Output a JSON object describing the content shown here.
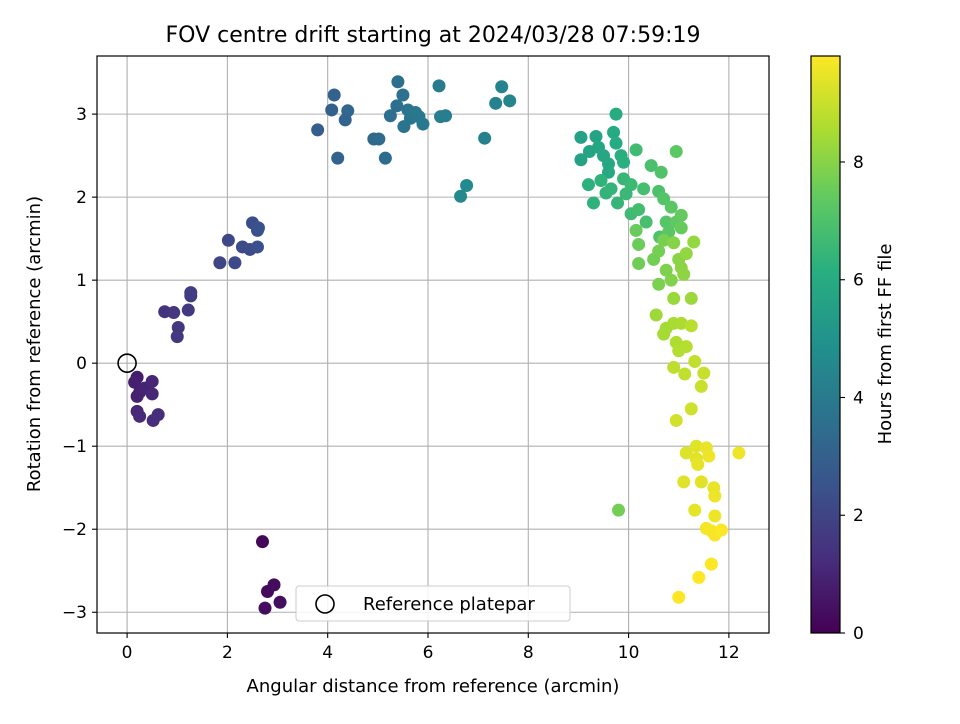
{
  "chart_data": {
    "type": "scatter",
    "title": "FOV centre drift starting at 2024/03/28 07:59:19",
    "xlabel": "Angular distance from reference (arcmin)",
    "ylabel": "Rotation from reference (arcmin)",
    "xlim": [
      -0.6,
      12.8
    ],
    "ylim": [
      -3.25,
      3.7
    ],
    "xticks": [
      0,
      2,
      4,
      6,
      8,
      10,
      12
    ],
    "yticks": [
      -3,
      -2,
      -1,
      0,
      1,
      2,
      3
    ],
    "grid": true,
    "colorbar": {
      "label": "Hours from first FF file",
      "colormap": "viridis",
      "range": [
        0,
        9.8
      ],
      "ticks": [
        0,
        2,
        4,
        6,
        8
      ]
    },
    "reference_point": {
      "x": 0,
      "y": 0
    },
    "legend": {
      "entries": [
        "Reference platepar"
      ],
      "position": "lower-center"
    },
    "points": [
      {
        "x": 2.7,
        "y": -2.15,
        "c": 0.2
      },
      {
        "x": 2.8,
        "y": -2.75,
        "c": 0.25
      },
      {
        "x": 2.93,
        "y": -2.67,
        "c": 0.3
      },
      {
        "x": 2.75,
        "y": -2.95,
        "c": 0.35
      },
      {
        "x": 3.05,
        "y": -2.88,
        "c": 0.4
      },
      {
        "x": 0.2,
        "y": -0.17,
        "c": 0.8
      },
      {
        "x": 0.15,
        "y": -0.23,
        "c": 0.85
      },
      {
        "x": 0.25,
        "y": -0.35,
        "c": 0.9
      },
      {
        "x": 0.2,
        "y": -0.4,
        "c": 0.95
      },
      {
        "x": 0.35,
        "y": -0.3,
        "c": 1.0
      },
      {
        "x": 0.5,
        "y": -0.22,
        "c": 1.05
      },
      {
        "x": 0.5,
        "y": -0.37,
        "c": 1.1
      },
      {
        "x": 0.2,
        "y": -0.58,
        "c": 1.15
      },
      {
        "x": 0.25,
        "y": -0.64,
        "c": 1.2
      },
      {
        "x": 0.52,
        "y": -0.69,
        "c": 1.25
      },
      {
        "x": 0.62,
        "y": -0.62,
        "c": 1.3
      },
      {
        "x": 0.75,
        "y": 0.62,
        "c": 1.5
      },
      {
        "x": 0.93,
        "y": 0.61,
        "c": 1.55
      },
      {
        "x": 1.02,
        "y": 0.43,
        "c": 1.6
      },
      {
        "x": 1.0,
        "y": 0.32,
        "c": 1.65
      },
      {
        "x": 1.22,
        "y": 0.64,
        "c": 1.7
      },
      {
        "x": 1.27,
        "y": 0.81,
        "c": 1.75
      },
      {
        "x": 1.27,
        "y": 0.85,
        "c": 1.8
      },
      {
        "x": 1.85,
        "y": 1.21,
        "c": 2.1
      },
      {
        "x": 2.02,
        "y": 1.48,
        "c": 2.15
      },
      {
        "x": 2.15,
        "y": 1.21,
        "c": 2.2
      },
      {
        "x": 2.3,
        "y": 1.4,
        "c": 2.25
      },
      {
        "x": 2.45,
        "y": 1.37,
        "c": 2.3
      },
      {
        "x": 2.5,
        "y": 1.69,
        "c": 2.35
      },
      {
        "x": 2.6,
        "y": 1.6,
        "c": 2.4
      },
      {
        "x": 2.6,
        "y": 1.4,
        "c": 2.45
      },
      {
        "x": 2.62,
        "y": 1.63,
        "c": 2.5
      },
      {
        "x": 3.8,
        "y": 2.81,
        "c": 3.0
      },
      {
        "x": 4.08,
        "y": 3.05,
        "c": 3.05
      },
      {
        "x": 4.13,
        "y": 3.23,
        "c": 3.1
      },
      {
        "x": 4.2,
        "y": 2.47,
        "c": 3.15
      },
      {
        "x": 4.35,
        "y": 2.93,
        "c": 3.2
      },
      {
        "x": 4.4,
        "y": 3.04,
        "c": 3.25
      },
      {
        "x": 4.92,
        "y": 2.7,
        "c": 3.4
      },
      {
        "x": 5.02,
        "y": 2.7,
        "c": 3.45
      },
      {
        "x": 5.15,
        "y": 2.47,
        "c": 3.5
      },
      {
        "x": 5.25,
        "y": 2.98,
        "c": 3.55
      },
      {
        "x": 5.38,
        "y": 3.1,
        "c": 3.6
      },
      {
        "x": 5.4,
        "y": 3.39,
        "c": 3.65
      },
      {
        "x": 5.5,
        "y": 3.23,
        "c": 3.7
      },
      {
        "x": 5.52,
        "y": 2.85,
        "c": 3.75
      },
      {
        "x": 5.6,
        "y": 3.05,
        "c": 3.8
      },
      {
        "x": 5.65,
        "y": 2.95,
        "c": 3.85
      },
      {
        "x": 5.75,
        "y": 3.02,
        "c": 3.9
      },
      {
        "x": 5.82,
        "y": 2.97,
        "c": 3.95
      },
      {
        "x": 5.9,
        "y": 2.88,
        "c": 4.0
      },
      {
        "x": 6.22,
        "y": 3.34,
        "c": 4.1
      },
      {
        "x": 6.25,
        "y": 2.97,
        "c": 4.15
      },
      {
        "x": 6.35,
        "y": 2.98,
        "c": 4.2
      },
      {
        "x": 6.65,
        "y": 2.01,
        "c": 4.6
      },
      {
        "x": 6.77,
        "y": 2.14,
        "c": 4.65
      },
      {
        "x": 7.13,
        "y": 2.71,
        "c": 4.3
      },
      {
        "x": 7.35,
        "y": 3.13,
        "c": 4.35
      },
      {
        "x": 7.47,
        "y": 3.33,
        "c": 4.4
      },
      {
        "x": 7.63,
        "y": 3.16,
        "c": 4.45
      },
      {
        "x": 9.05,
        "y": 2.72,
        "c": 5.6
      },
      {
        "x": 9.05,
        "y": 2.45,
        "c": 5.65
      },
      {
        "x": 9.22,
        "y": 2.55,
        "c": 5.7
      },
      {
        "x": 9.35,
        "y": 2.73,
        "c": 5.75
      },
      {
        "x": 9.4,
        "y": 2.6,
        "c": 5.8
      },
      {
        "x": 9.5,
        "y": 2.5,
        "c": 5.85
      },
      {
        "x": 9.6,
        "y": 2.4,
        "c": 5.9
      },
      {
        "x": 9.6,
        "y": 2.3,
        "c": 5.95
      },
      {
        "x": 9.7,
        "y": 2.78,
        "c": 6.0
      },
      {
        "x": 9.75,
        "y": 2.65,
        "c": 6.05
      },
      {
        "x": 9.75,
        "y": 3.0,
        "c": 6.1
      },
      {
        "x": 9.85,
        "y": 2.5,
        "c": 6.15
      },
      {
        "x": 9.9,
        "y": 2.42,
        "c": 6.2
      },
      {
        "x": 9.2,
        "y": 2.15,
        "c": 6.25
      },
      {
        "x": 9.3,
        "y": 1.93,
        "c": 6.3
      },
      {
        "x": 9.45,
        "y": 2.2,
        "c": 6.35
      },
      {
        "x": 9.55,
        "y": 2.05,
        "c": 6.4
      },
      {
        "x": 9.65,
        "y": 2.1,
        "c": 6.45
      },
      {
        "x": 9.78,
        "y": 1.93,
        "c": 6.5
      },
      {
        "x": 9.9,
        "y": 2.22,
        "c": 6.55
      },
      {
        "x": 9.95,
        "y": 2.04,
        "c": 6.6
      },
      {
        "x": 10.05,
        "y": 2.15,
        "c": 6.65
      },
      {
        "x": 10.05,
        "y": 1.8,
        "c": 6.7
      },
      {
        "x": 10.15,
        "y": 2.57,
        "c": 6.75
      },
      {
        "x": 10.2,
        "y": 1.85,
        "c": 6.8
      },
      {
        "x": 10.3,
        "y": 2.1,
        "c": 6.85
      },
      {
        "x": 10.35,
        "y": 1.7,
        "c": 6.9
      },
      {
        "x": 10.45,
        "y": 2.38,
        "c": 6.95
      },
      {
        "x": 10.6,
        "y": 2.07,
        "c": 7.0
      },
      {
        "x": 10.62,
        "y": 1.52,
        "c": 7.05
      },
      {
        "x": 10.65,
        "y": 2.3,
        "c": 7.1
      },
      {
        "x": 10.7,
        "y": 1.98,
        "c": 7.15
      },
      {
        "x": 10.75,
        "y": 1.7,
        "c": 7.2
      },
      {
        "x": 10.8,
        "y": 1.58,
        "c": 7.25
      },
      {
        "x": 10.85,
        "y": 1.88,
        "c": 7.3
      },
      {
        "x": 10.95,
        "y": 2.55,
        "c": 7.35
      },
      {
        "x": 10.95,
        "y": 1.7,
        "c": 7.4
      },
      {
        "x": 11.05,
        "y": 1.78,
        "c": 7.45
      },
      {
        "x": 11.05,
        "y": 1.63,
        "c": 7.5
      },
      {
        "x": 10.15,
        "y": 1.6,
        "c": 7.55
      },
      {
        "x": 10.2,
        "y": 1.43,
        "c": 7.6
      },
      {
        "x": 10.2,
        "y": 1.2,
        "c": 7.65
      },
      {
        "x": 10.5,
        "y": 1.25,
        "c": 7.7
      },
      {
        "x": 10.6,
        "y": 1.35,
        "c": 7.75
      },
      {
        "x": 10.7,
        "y": 1.48,
        "c": 7.8
      },
      {
        "x": 10.6,
        "y": 0.95,
        "c": 7.85
      },
      {
        "x": 10.75,
        "y": 1.12,
        "c": 7.9
      },
      {
        "x": 10.85,
        "y": 1.0,
        "c": 7.95
      },
      {
        "x": 10.9,
        "y": 1.45,
        "c": 8.0
      },
      {
        "x": 11.0,
        "y": 1.25,
        "c": 8.05
      },
      {
        "x": 11.05,
        "y": 1.15,
        "c": 8.1
      },
      {
        "x": 11.1,
        "y": 1.07,
        "c": 8.15
      },
      {
        "x": 11.15,
        "y": 1.32,
        "c": 8.2
      },
      {
        "x": 11.3,
        "y": 1.46,
        "c": 8.25
      },
      {
        "x": 10.9,
        "y": 0.78,
        "c": 8.3
      },
      {
        "x": 11.25,
        "y": 0.78,
        "c": 8.35
      },
      {
        "x": 10.55,
        "y": 0.58,
        "c": 8.4
      },
      {
        "x": 10.75,
        "y": 0.42,
        "c": 8.45
      },
      {
        "x": 10.7,
        "y": 0.35,
        "c": 8.5
      },
      {
        "x": 10.9,
        "y": 0.48,
        "c": 8.55
      },
      {
        "x": 11.05,
        "y": 0.48,
        "c": 8.6
      },
      {
        "x": 10.95,
        "y": 0.25,
        "c": 8.65
      },
      {
        "x": 11.0,
        "y": 0.15,
        "c": 8.7
      },
      {
        "x": 11.15,
        "y": 0.2,
        "c": 8.75
      },
      {
        "x": 11.25,
        "y": 0.45,
        "c": 8.8
      },
      {
        "x": 10.9,
        "y": -0.05,
        "c": 8.85
      },
      {
        "x": 11.12,
        "y": -0.13,
        "c": 8.9
      },
      {
        "x": 11.32,
        "y": 0.02,
        "c": 8.95
      },
      {
        "x": 11.5,
        "y": -0.12,
        "c": 9.0
      },
      {
        "x": 11.45,
        "y": -0.28,
        "c": 9.05
      },
      {
        "x": 11.25,
        "y": -0.55,
        "c": 9.1
      },
      {
        "x": 10.95,
        "y": -0.69,
        "c": 9.15
      },
      {
        "x": 9.8,
        "y": -1.77,
        "c": 7.7
      },
      {
        "x": 11.15,
        "y": -1.08,
        "c": 9.3
      },
      {
        "x": 11.35,
        "y": -1.0,
        "c": 9.35
      },
      {
        "x": 11.35,
        "y": -1.15,
        "c": 9.4
      },
      {
        "x": 11.38,
        "y": -1.22,
        "c": 9.45
      },
      {
        "x": 11.55,
        "y": -1.02,
        "c": 9.5
      },
      {
        "x": 11.6,
        "y": -1.12,
        "c": 9.55
      },
      {
        "x": 12.2,
        "y": -1.08,
        "c": 9.6
      },
      {
        "x": 11.1,
        "y": -1.43,
        "c": 9.35
      },
      {
        "x": 11.45,
        "y": -1.43,
        "c": 9.4
      },
      {
        "x": 11.32,
        "y": -1.77,
        "c": 9.45
      },
      {
        "x": 11.7,
        "y": -1.5,
        "c": 9.5
      },
      {
        "x": 11.72,
        "y": -1.6,
        "c": 9.55
      },
      {
        "x": 11.72,
        "y": -1.84,
        "c": 9.6
      },
      {
        "x": 11.55,
        "y": -1.99,
        "c": 9.65
      },
      {
        "x": 11.65,
        "y": -2.02,
        "c": 9.7
      },
      {
        "x": 11.72,
        "y": -2.07,
        "c": 9.72
      },
      {
        "x": 11.85,
        "y": -2.01,
        "c": 9.75
      },
      {
        "x": 11.65,
        "y": -2.42,
        "c": 9.77
      },
      {
        "x": 11.4,
        "y": -2.58,
        "c": 9.78
      },
      {
        "x": 11.0,
        "y": -2.82,
        "c": 9.8
      }
    ]
  }
}
